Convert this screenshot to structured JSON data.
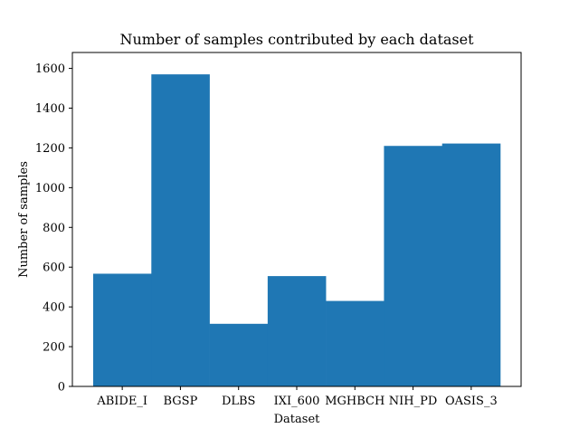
{
  "chart_data": {
    "type": "bar",
    "title": "Number of samples contributed by each dataset",
    "xlabel": "Dataset",
    "ylabel": "Number of samples",
    "categories": [
      "ABIDE_I",
      "BGSP",
      "DLBS",
      "IXI_600",
      "MGHBCH",
      "NIH_PD",
      "OASIS_3"
    ],
    "values": [
      567,
      1570,
      315,
      555,
      430,
      1210,
      1222
    ],
    "ylim": [
      0,
      1680
    ],
    "yticks": [
      0,
      200,
      400,
      600,
      800,
      1000,
      1200,
      1400,
      1600
    ],
    "grid": false,
    "legend": "none",
    "colors": {
      "bar": "#1f77b4",
      "axis": "#000000",
      "background": "#ffffff"
    }
  }
}
